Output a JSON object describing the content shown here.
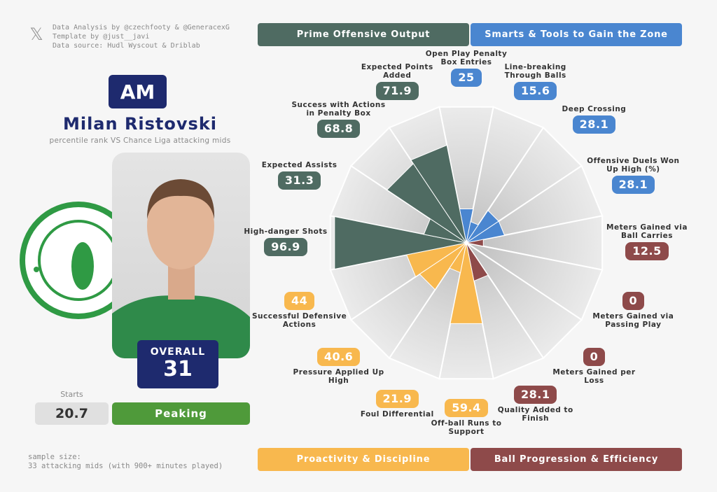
{
  "header": {
    "credits": [
      "Data Analysis by @czechfooty & @GeneracexG",
      "Template by @just__javi",
      "Data source: Hudl Wyscout & Driblab"
    ]
  },
  "player": {
    "position": "AM",
    "name": "Milan Ristovski",
    "subtitle": "percentile rank VS Chance Liga attacking mids",
    "overall_label": "OVERALL",
    "overall": 31,
    "starts_label": "Starts",
    "starts": 20.7,
    "status": "Peaking"
  },
  "footer": {
    "sample_size": [
      "sample size:",
      "33 attacking mids (with 900+ minutes played)"
    ]
  },
  "chart_data": {
    "type": "pizza",
    "categories": [
      "Open Play Penalty Box Entries",
      "Line-breaking Through Balls",
      "Deep Crossing",
      "Offensive Duels Won Up High (%)",
      "Meters Gained via Ball Carries",
      "Meters Gained via Passing Play",
      "Meters Gained per Loss",
      "Quality Added to Finish",
      "Off-ball Runs to Support",
      "Foul Differential",
      "Pressure Applied Up High",
      "Successful Defensive Actions",
      "High-danger Shots",
      "Expected Assists",
      "Success with Actions in Penalty Box",
      "Expected Points Added"
    ],
    "values": [
      25,
      15.6,
      28.1,
      28.1,
      12.5,
      0,
      0,
      28.1,
      59.4,
      21.9,
      40.6,
      44,
      96.9,
      31.3,
      68.8,
      71.9
    ],
    "colors": [
      "#4a86d0",
      "#4a86d0",
      "#4a86d0",
      "#4a86d0",
      "#8e4a4a",
      "#8e4a4a",
      "#8e4a4a",
      "#8e4a4a",
      "#f8b84e",
      "#f8b84e",
      "#f8b84e",
      "#f8b84e",
      "#4f6b62",
      "#4f6b62",
      "#4f6b62",
      "#4f6b62"
    ],
    "ylim": [
      0,
      100
    ],
    "groups": [
      {
        "name": "Prime Offensive Output",
        "color": "#4f6b62"
      },
      {
        "name": "Smarts & Tools to Gain the Zone",
        "color": "#4a86d0"
      },
      {
        "name": "Proactivity & Discipline",
        "color": "#f8b84e"
      },
      {
        "name": "Ball Progression & Efficiency",
        "color": "#8e4a4a"
      }
    ]
  }
}
